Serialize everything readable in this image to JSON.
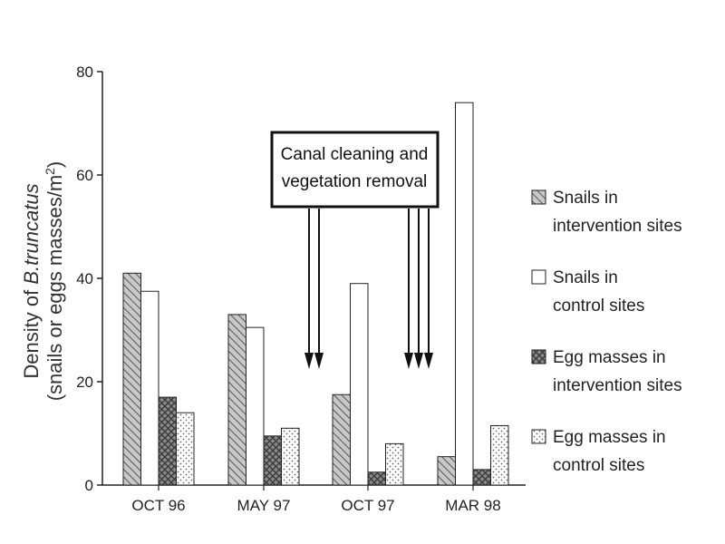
{
  "chart_data": {
    "type": "bar",
    "categories": [
      "OCT 96",
      "MAY 97",
      "OCT 97",
      "MAR 98"
    ],
    "series": [
      {
        "name_line1": "Snails in",
        "name_line2": "intervention sites",
        "pattern": "diag-hatch-light",
        "values": [
          41,
          33,
          17.5,
          5.5
        ]
      },
      {
        "name_line1": "Snails in",
        "name_line2": "control sites",
        "pattern": "white",
        "values": [
          37.5,
          30.5,
          39,
          74
        ]
      },
      {
        "name_line1": "Egg masses in",
        "name_line2": "intervention sites",
        "pattern": "cross-hatch-dark",
        "values": [
          17,
          9.5,
          2.5,
          3
        ]
      },
      {
        "name_line1": "Egg masses in",
        "name_line2": "control sites",
        "pattern": "dots",
        "values": [
          14,
          11,
          8,
          11.5
        ]
      }
    ],
    "ylim": [
      0,
      80
    ],
    "yticks": [
      0,
      20,
      40,
      60,
      80
    ],
    "ylabel_line1_prefix": "Density of ",
    "ylabel_line1_italic": "B.truncatus",
    "ylabel_line2": "(snails or eggs masses/m",
    "ylabel_line2_sup": "2",
    "ylabel_line2_suffix": ")",
    "annotation": {
      "line1": "Canal cleaning and",
      "line2": "vegetation removal",
      "arrows_after_categories": [
        {
          "after": "MAY 97",
          "count": 2
        },
        {
          "after": "OCT 97",
          "count": 3
        }
      ]
    },
    "legend_position": "right",
    "grid": false
  }
}
